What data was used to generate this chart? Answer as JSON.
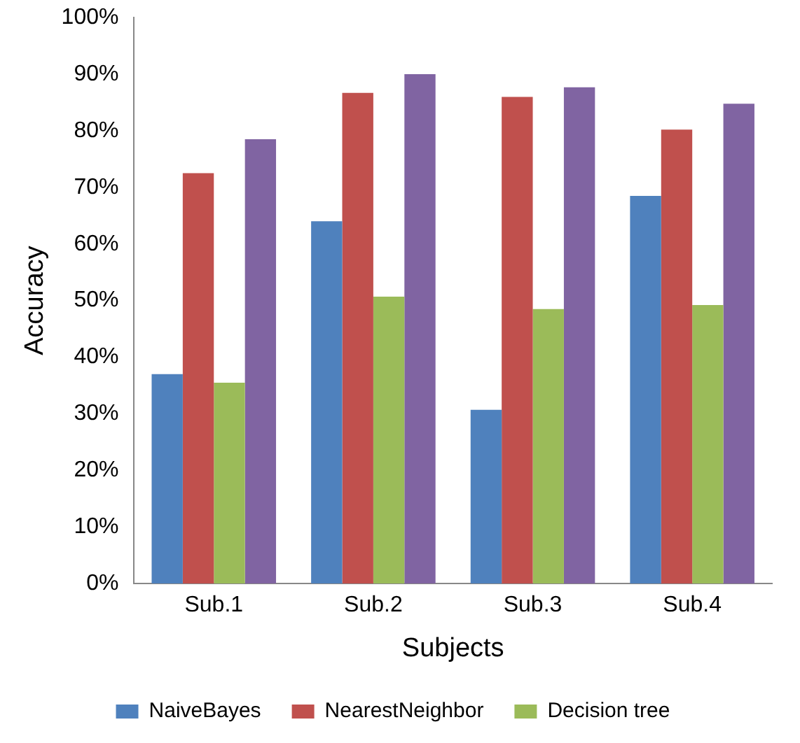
{
  "chart_data": {
    "type": "bar",
    "xlabel": "Subjects",
    "ylabel": "Accuracy",
    "categories": [
      "Sub.1",
      "Sub.2",
      "Sub.3",
      "Sub.4"
    ],
    "series": [
      {
        "name": "NaiveBayes",
        "color": "#4f81bd",
        "values": [
          37,
          64,
          30.7,
          68.5
        ]
      },
      {
        "name": "NearestNeighbor",
        "color": "#c0504d",
        "values": [
          72.5,
          86.7,
          86,
          80.2
        ]
      },
      {
        "name": "Decision tree",
        "color": "#9bbb59",
        "values": [
          35.5,
          50.7,
          48.5,
          49.2
        ]
      },
      {
        "color": "#8064a2",
        "values": [
          78.5,
          90,
          87.7,
          84.8
        ]
      }
    ],
    "ylim": [
      0,
      100
    ],
    "yticks": [
      {
        "value": 0,
        "label": "0%"
      },
      {
        "value": 10,
        "label": "10%"
      },
      {
        "value": 20,
        "label": "20%"
      },
      {
        "value": 30,
        "label": "30%"
      },
      {
        "value": 40,
        "label": "40%"
      },
      {
        "value": 50,
        "label": "50%"
      },
      {
        "value": 60,
        "label": "60%"
      },
      {
        "value": 70,
        "label": "70%"
      },
      {
        "value": 80,
        "label": "80%"
      },
      {
        "value": 90,
        "label": "90%"
      },
      {
        "value": 100,
        "label": "100%"
      }
    ],
    "grid": false,
    "legend": "bottom"
  }
}
